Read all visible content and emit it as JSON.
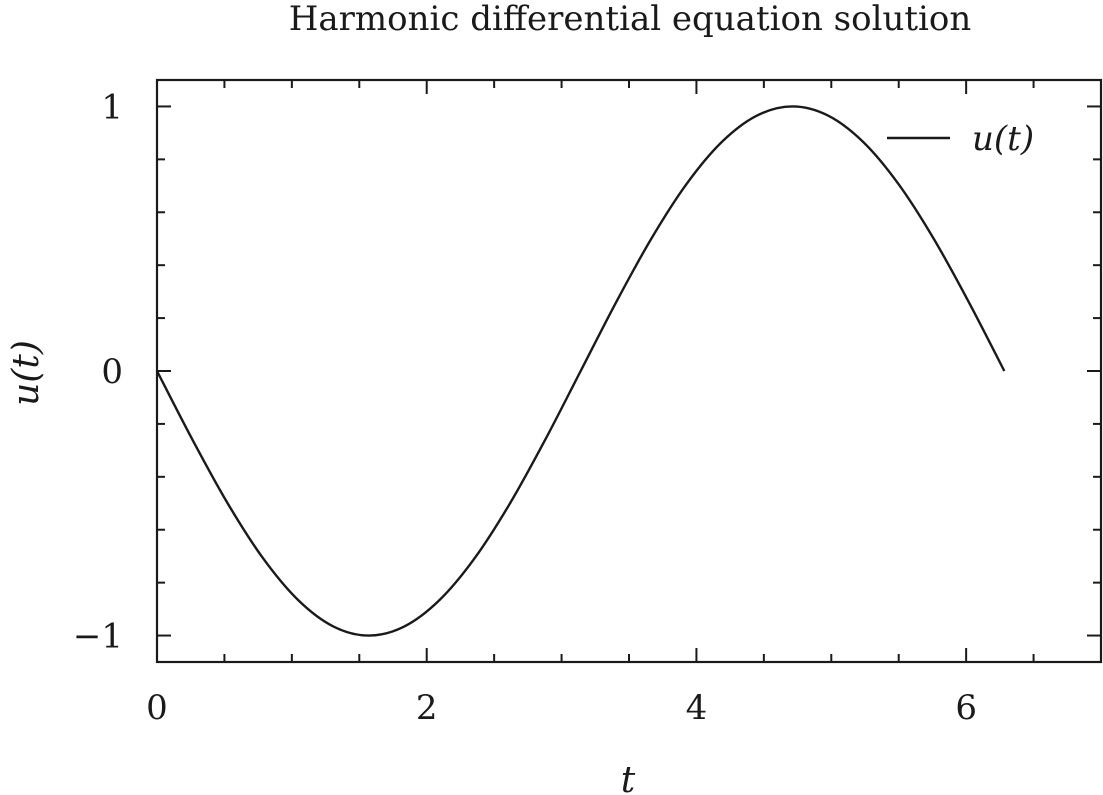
{
  "chart_data": {
    "type": "line",
    "title": "Harmonic differential equation solution",
    "xlabel": "t",
    "ylabel": "u(t)",
    "xlim": [
      0,
      7
    ],
    "ylim": [
      -1.1,
      1.1
    ],
    "x_ticks": [
      0,
      2,
      4,
      6
    ],
    "x_tick_labels": [
      "0",
      "2",
      "4",
      "6"
    ],
    "x_minor_ticks": [
      0.5,
      1,
      1.5,
      2.5,
      3,
      3.5,
      4.5,
      5,
      5.5,
      6.5
    ],
    "y_ticks": [
      -1,
      0,
      1
    ],
    "y_tick_labels": [
      "−1",
      "0",
      "1"
    ],
    "y_minor_ticks": [
      -0.8,
      -0.6,
      -0.4,
      -0.2,
      0.2,
      0.4,
      0.6,
      0.8
    ],
    "grid": false,
    "legend_position": "top-right",
    "series": [
      {
        "name": "u(t)",
        "color": "#1a1a1a",
        "x": [
          0,
          0.2618,
          0.5236,
          0.7854,
          1.0472,
          1.309,
          1.5708,
          1.8326,
          2.0944,
          2.3562,
          2.618,
          2.8798,
          3.1416,
          3.4034,
          3.6652,
          3.927,
          4.1888,
          4.4506,
          4.7124,
          4.9742,
          5.236,
          5.4978,
          5.7596,
          6.0214,
          6.2832
        ],
        "y": [
          0,
          -0.2588,
          -0.5,
          -0.7071,
          -0.866,
          -0.9659,
          -1,
          -0.9659,
          -0.866,
          -0.7071,
          -0.5,
          -0.2588,
          0,
          0.2588,
          0.5,
          0.7071,
          0.866,
          0.9659,
          1,
          0.9659,
          0.866,
          0.7071,
          0.5,
          0.2588,
          0
        ]
      }
    ]
  }
}
